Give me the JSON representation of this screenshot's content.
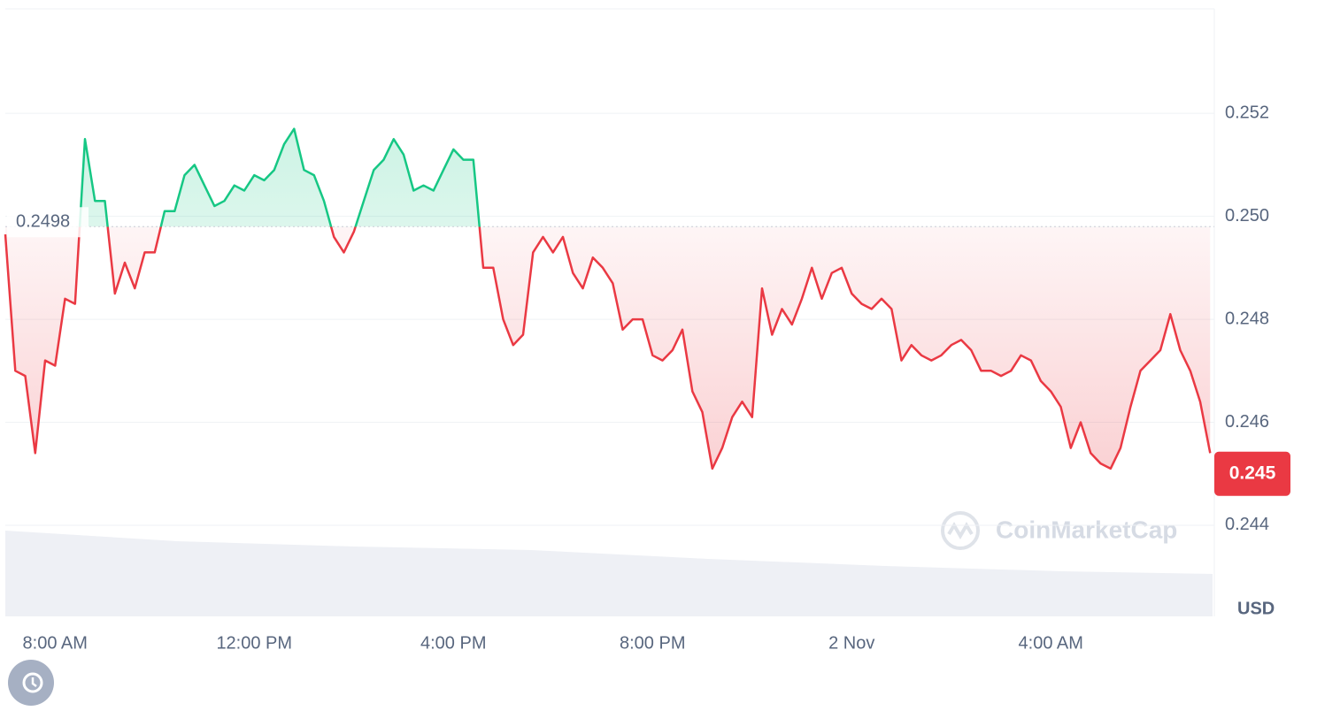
{
  "chart_data": {
    "type": "line",
    "categories": [
      null,
      null,
      null,
      null,
      null,
      "8:00 AM",
      null,
      null,
      null,
      null,
      null,
      null,
      null,
      null,
      null,
      null,
      null,
      null,
      null,
      null,
      null,
      null,
      null,
      null,
      null,
      "12:00 PM",
      null,
      null,
      null,
      null,
      null,
      null,
      null,
      null,
      null,
      null,
      null,
      null,
      null,
      null,
      null,
      null,
      null,
      null,
      null,
      "4:00 PM",
      null,
      null,
      null,
      null,
      null,
      null,
      null,
      null,
      null,
      null,
      null,
      null,
      null,
      null,
      null,
      null,
      null,
      null,
      null,
      "8:00 PM",
      null,
      null,
      null,
      null,
      null,
      null,
      null,
      null,
      null,
      null,
      null,
      null,
      null,
      null,
      null,
      null,
      null,
      null,
      null,
      "2 Nov",
      null,
      null,
      null,
      null,
      null,
      null,
      null,
      null,
      null,
      null,
      null,
      null,
      null,
      null,
      null,
      null,
      null,
      null,
      null,
      "4:00 AM",
      null,
      null,
      null,
      null,
      null,
      null,
      null,
      null,
      null,
      null,
      null,
      null,
      null,
      null,
      null,
      null
    ],
    "series": [
      {
        "name": "Price",
        "color_up": "#16c784",
        "color_down": "#ea3943",
        "values": [
          0.24965,
          0.247,
          0.2469,
          0.2454,
          0.2472,
          0.2471,
          0.2484,
          0.2483,
          0.2515,
          0.2503,
          0.2503,
          0.2485,
          0.2491,
          0.2486,
          0.2493,
          0.2493,
          0.2501,
          0.2501,
          0.2508,
          0.251,
          0.2506,
          0.2502,
          0.2503,
          0.2506,
          0.2505,
          0.2508,
          0.2507,
          0.2509,
          0.2514,
          0.2517,
          0.2509,
          0.2508,
          0.2503,
          0.2496,
          0.2493,
          0.2497,
          0.2503,
          0.2509,
          0.2511,
          0.2515,
          0.2512,
          0.2505,
          0.2506,
          0.2505,
          0.2509,
          0.2513,
          0.2511,
          0.2511,
          0.249,
          0.249,
          0.248,
          0.2475,
          0.2477,
          0.2493,
          0.2496,
          0.2493,
          0.2496,
          0.2489,
          0.2486,
          0.2492,
          0.249,
          0.2487,
          0.2478,
          0.248,
          0.248,
          0.2473,
          0.2472,
          0.2474,
          0.2478,
          0.2466,
          0.2462,
          0.2451,
          0.2455,
          0.2461,
          0.2464,
          0.2461,
          0.2486,
          0.2477,
          0.2482,
          0.2479,
          0.2484,
          0.249,
          0.2484,
          0.2489,
          0.249,
          0.2485,
          0.2483,
          0.2482,
          0.2484,
          0.2482,
          0.2472,
          0.2475,
          0.2473,
          0.2472,
          0.2473,
          0.2475,
          0.2476,
          0.2474,
          0.247,
          0.247,
          0.2469,
          0.247,
          0.2473,
          0.2472,
          0.2468,
          0.2466,
          0.2463,
          0.2455,
          0.246,
          0.2454,
          0.2452,
          0.2451,
          0.2455,
          0.2463,
          0.247,
          0.2472,
          0.2474,
          0.2481,
          0.2474,
          0.247,
          0.2464,
          0.2454
        ]
      }
    ],
    "baseline": 0.2498,
    "current_price": 0.245,
    "ylim": [
      0.24223,
      0.25403
    ],
    "yticks": [
      0.244,
      0.246,
      0.248,
      {
        "value": 0.25,
        "label": "0.250"
      },
      0.252
    ],
    "currency": "USD",
    "watermark": "CoinMarketCap",
    "grid": true
  }
}
